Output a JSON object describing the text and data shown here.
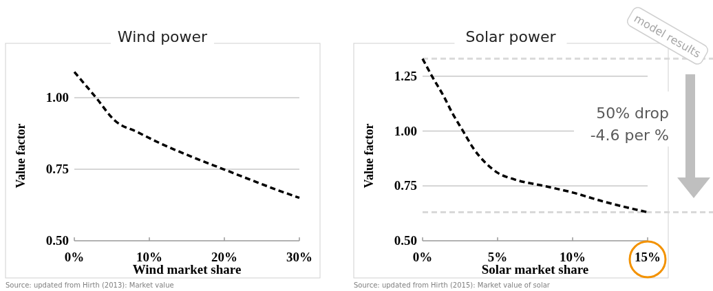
{
  "chart_data": [
    {
      "type": "line",
      "title": "Wind power",
      "xlabel": "Wind market share",
      "ylabel": "Value factor",
      "xlim": [
        0,
        30
      ],
      "xticks": [
        {
          "value": 0,
          "label": "0%"
        },
        {
          "value": 10,
          "label": "10%"
        },
        {
          "value": 20,
          "label": "20%"
        },
        {
          "value": 30,
          "label": "30%"
        }
      ],
      "ylim": [
        0.5,
        1.19
      ],
      "yticks": [
        {
          "value": 0.5,
          "label": "0.50"
        },
        {
          "value": 0.75,
          "label": "0.75"
        },
        {
          "value": 1,
          "label": "1.00"
        }
      ],
      "grid": "y",
      "line_style": "dashed",
      "series": [
        {
          "color": "#000000",
          "x": [
            0,
            2.9,
            5.4,
            8.4,
            11.5,
            16,
            19.9,
            23.8,
            26.8,
            30
          ],
          "values": [
            1.09,
            1.0,
            0.92,
            0.88,
            0.84,
            0.79,
            0.75,
            0.71,
            0.68,
            0.65
          ]
        }
      ],
      "annotations": [
        "Source: updated from Hirth (2013): Market value"
      ]
    },
    {
      "type": "line",
      "title": "Solar power",
      "xlabel": "Solar market share",
      "ylabel": "Value factor",
      "xlim": [
        0,
        15
      ],
      "xticks": [
        {
          "value": 0,
          "label": "0%"
        },
        {
          "value": 5,
          "label": "5%"
        },
        {
          "value": 10,
          "label": "10%"
        },
        {
          "value": 15,
          "label": "15%"
        }
      ],
      "ylim": [
        0.5,
        1.4
      ],
      "yticks": [
        {
          "value": 0.5,
          "label": "0.50"
        },
        {
          "value": 0.75,
          "label": "0.75"
        },
        {
          "value": 1,
          "label": "1.00"
        },
        {
          "value": 1.25,
          "label": "1.25"
        }
      ],
      "grid": "y",
      "line_style": "dashed",
      "series": [
        {
          "color": "#000000",
          "x": [
            0,
            0.63,
            1.4,
            2.0,
            2.7,
            3.4,
            4.2,
            5.0,
            6.1,
            8.1,
            10,
            12,
            15
          ],
          "values": [
            1.33,
            1.25,
            1.16,
            1.08,
            1.0,
            0.92,
            0.855,
            0.81,
            0.78,
            0.75,
            0.72,
            0.68,
            0.63
          ]
        }
      ],
      "ref_lines": [
        {
          "axis": "y",
          "value": 1.33,
          "color": "#d9d9d9",
          "line_style": "dashed"
        },
        {
          "axis": "y",
          "value": 0.63,
          "color": "#d9d9d9",
          "line_style": "dashed"
        }
      ],
      "annotations": [
        "model results",
        "50% drop",
        "-4.6 per %",
        "Source: updated from Hirth (2015): Market value of solar"
      ]
    }
  ]
}
